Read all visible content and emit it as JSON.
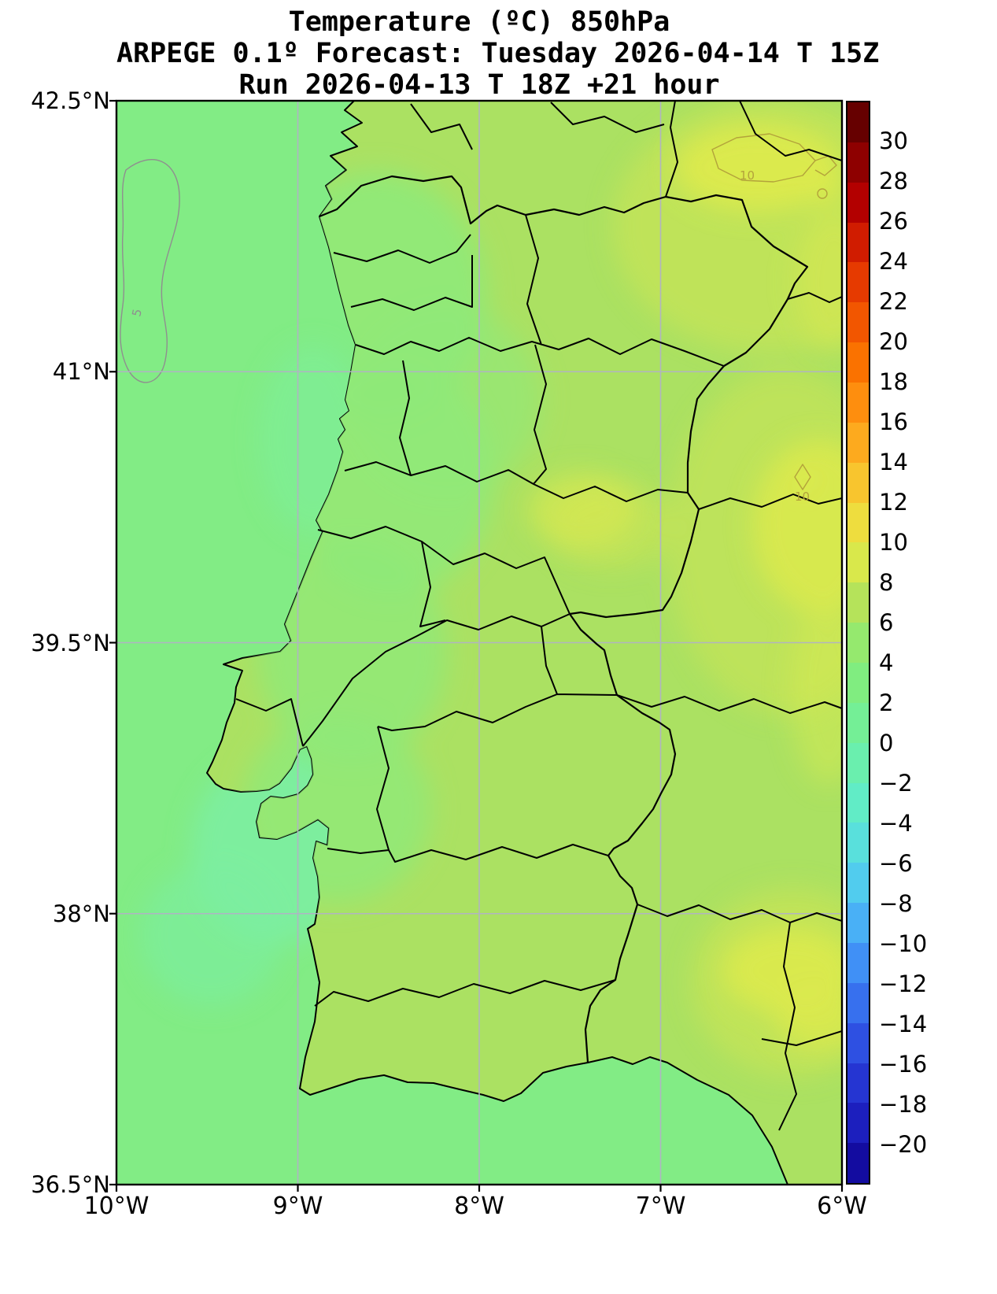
{
  "title": {
    "line1": "Temperature (ºC) 850hPa",
    "line2": "ARPEGE 0.1º Forecast: Tuesday 2026-04-14 T 15Z",
    "line3": "Run 2026-04-13 T 18Z +21 hour"
  },
  "axes": {
    "y_ticks": [
      "42.5°N",
      "41°N",
      "39.5°N",
      "38°N",
      "36.5°N"
    ],
    "x_ticks": [
      "10°W",
      "9°W",
      "8°W",
      "7°W",
      "6°W"
    ]
  },
  "colorbar": {
    "tick_labels": [
      "30",
      "28",
      "26",
      "24",
      "22",
      "20",
      "18",
      "16",
      "14",
      "12",
      "10",
      "8",
      "6",
      "4",
      "2",
      "0",
      "−2",
      "−4",
      "−6",
      "−8",
      "−10",
      "−12",
      "−14",
      "−16",
      "−18",
      "−20"
    ],
    "colors": [
      "#660000",
      "#8e0000",
      "#b30000",
      "#d01c00",
      "#e63a00",
      "#f25600",
      "#fa7200",
      "#fe8e0e",
      "#fdaa1e",
      "#f8c52e",
      "#eedd3e",
      "#d9e84b",
      "#b5e35a",
      "#95e96e",
      "#80ed80",
      "#74ef96",
      "#6aefae",
      "#61ecc6",
      "#59e0dc",
      "#51ccee",
      "#49b0f6",
      "#4090f6",
      "#3770ee",
      "#2e50e2",
      "#2535d2",
      "#1c1fbe",
      "#130ca0"
    ]
  },
  "map": {
    "colors": {
      "sea": "#82ec85",
      "sea_cool_patch": "#7cefa2",
      "land": "#abe162",
      "land_green": "#8fea79",
      "warm_yellow": "#dcea4e",
      "warm_soft": "#cfe654",
      "contour_gray": "#8f8f8f",
      "contour_yellow": "#b3a33b",
      "grid": "#b2b2c6",
      "boundary": "#000000"
    },
    "contour_labels": [
      {
        "text": "5"
      },
      {
        "text": "10"
      },
      {
        "text": "10"
      }
    ]
  },
  "chart_data": {
    "type": "heatmap",
    "title": "Temperature (ºC) 850hPa",
    "model": "ARPEGE 0.1º",
    "valid_time": "Tuesday 2026-04-14 T 15Z",
    "run_time": "2026-04-13 T 18Z",
    "lead_hours": 21,
    "xlabel": "",
    "ylabel": "",
    "x_tick_labels": [
      "10°W",
      "9°W",
      "8°W",
      "7°W",
      "6°W"
    ],
    "y_tick_labels": [
      "42.5°N",
      "41°N",
      "39.5°N",
      "38°N",
      "36.5°N"
    ],
    "xlim_deg_lon": [
      -10,
      -6
    ],
    "ylim_deg_lat": [
      36.5,
      42.5
    ],
    "grid": true,
    "legend_position": "right-colorbar",
    "colorbar": {
      "min": -20,
      "max": 30,
      "step": 2,
      "units": "°C"
    },
    "contour_line_values": [
      5,
      10,
      10
    ],
    "regions": [
      {
        "area": "Atlantic ocean west of Portugal",
        "temp_c": "4 to 6"
      },
      {
        "area": "coastal sea near Lisbon / Setúbal",
        "temp_c": "2 to 4"
      },
      {
        "area": "NW Portugal (Minho, Porto, central coast)",
        "temp_c": "4 to 6"
      },
      {
        "area": "Portugal interior and Alentejo",
        "temp_c": "6 to 8"
      },
      {
        "area": "NE corner of map (Zamora / León, Spain)",
        "temp_c": "10 to 12"
      },
      {
        "area": "eastern Spain edge (Salamanca / Cáceres)",
        "temp_c": "8 to 10"
      },
      {
        "area": "SE corner (Sevilla area)",
        "temp_c": "8 to 10"
      }
    ]
  }
}
